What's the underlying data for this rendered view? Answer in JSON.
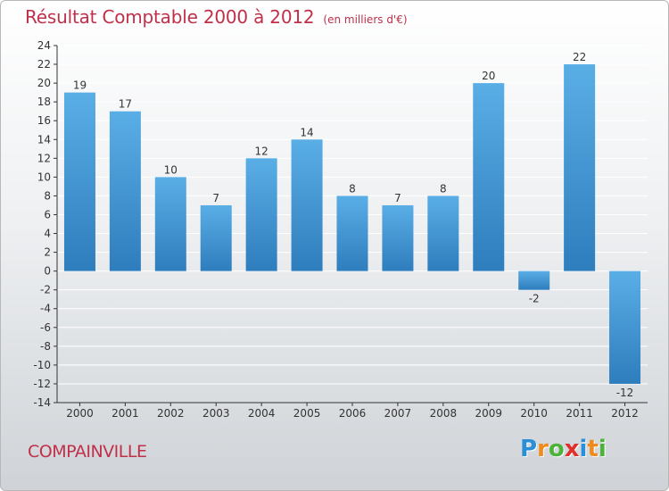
{
  "chart_data": {
    "type": "bar",
    "title": "Résultat Comptable 2000 à 2012",
    "subtitle": "(en milliers d'€)",
    "categories": [
      "2000",
      "2001",
      "2002",
      "2003",
      "2004",
      "2005",
      "2006",
      "2007",
      "2008",
      "2009",
      "2010",
      "2011",
      "2012"
    ],
    "values": [
      19,
      17,
      10,
      7,
      12,
      14,
      8,
      7,
      8,
      20,
      -2,
      22,
      -12
    ],
    "value_labels": [
      "19",
      "17",
      "10",
      "7",
      "12",
      "14",
      "8",
      "7",
      "8",
      "20",
      "-2",
      "22",
      "-12"
    ],
    "y_ticks": [
      24,
      22,
      20,
      18,
      16,
      14,
      12,
      10,
      8,
      6,
      4,
      2,
      0,
      -2,
      -4,
      -6,
      -8,
      -10,
      -12,
      -14
    ],
    "y_tick_labels": [
      "24",
      "22",
      "20",
      "18",
      "16",
      "14",
      "12",
      "10",
      "8",
      "6",
      "4",
      "2",
      "0",
      "-2",
      "-4",
      "-6",
      "-8",
      "-10",
      "-12",
      "-14"
    ],
    "ylim": [
      -14,
      24
    ],
    "xlabel": "",
    "ylabel": "",
    "grid": true
  },
  "footer": {
    "commune": "COMPAINVILLE",
    "brand": "Proxiti",
    "brand_letters": [
      "P",
      "r",
      "o",
      "x",
      "i",
      "t",
      "i"
    ]
  },
  "colors": {
    "bar_light": "#5aaee6",
    "bar_dark": "#2e7dbd",
    "title": "#c0304a",
    "grid": "#ffffff",
    "axis": "#333333",
    "brand_letters": [
      "#2a8fd6",
      "#f08a1c",
      "#4bb33a",
      "#e0302a",
      "#2a8fd6",
      "#f08a1c",
      "#4bb33a"
    ]
  }
}
